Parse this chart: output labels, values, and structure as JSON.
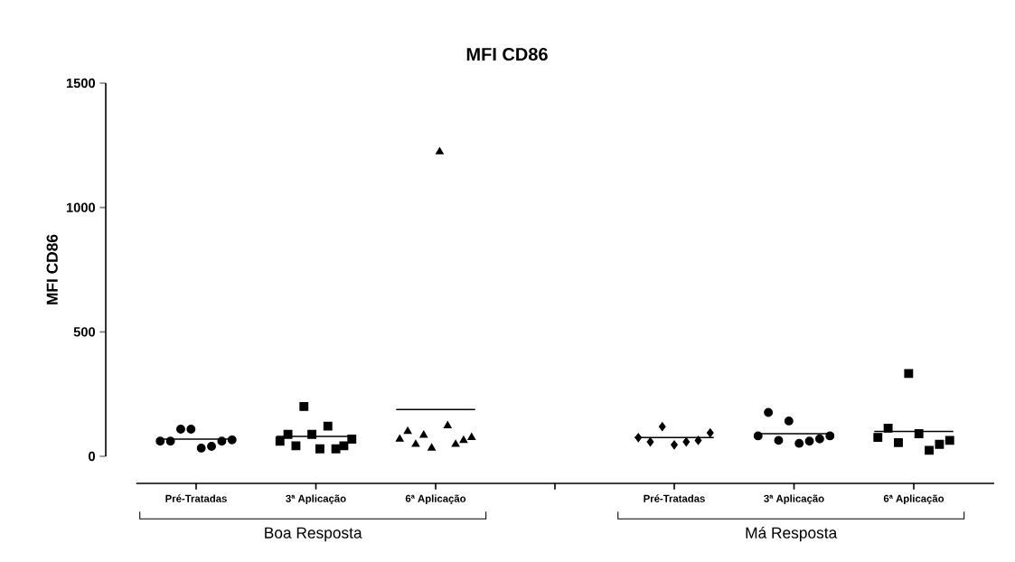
{
  "chart_data": [
    {
      "type": "scatter",
      "title": "MFI CD86",
      "ylabel": "MFI CD86",
      "xlabel": "Boa Resposta",
      "categories": [
        "Pré-Tratadas",
        "3ª Aplicação",
        "6ª Aplicação"
      ],
      "ylim": [
        0,
        1500
      ],
      "yticks": [
        0,
        500,
        1000,
        1500
      ],
      "series": [
        {
          "color": "#000000",
          "marker": "circle",
          "x": [
            "Pré-Tratadas",
            "Pré-Tratadas",
            "Pré-Tratadas",
            "Pré-Tratadas",
            "Pré-Tratadas",
            "Pré-Tratadas",
            "Pré-Tratadas",
            "Pré-Tratadas"
          ],
          "values": [
            61,
            61,
            109,
            109,
            33,
            40,
            61,
            66
          ]
        },
        {
          "color": "#000000",
          "marker": "square",
          "x": [
            "3ª Aplicação",
            "3ª Aplicação",
            "3ª Aplicação",
            "3ª Aplicação",
            "3ª Aplicação",
            "3ª Aplicação",
            "3ª Aplicação",
            "3ª Aplicação",
            "3ª Aplicação",
            "3ª Aplicação"
          ],
          "values": [
            61,
            88,
            42,
            200,
            88,
            30,
            121,
            30,
            42,
            69
          ]
        },
        {
          "color": "#000000",
          "marker": "triangle",
          "x": [
            "6ª Aplicação",
            "6ª Aplicação",
            "6ª Aplicação",
            "6ª Aplicação",
            "6ª Aplicação",
            "6ª Aplicação",
            "6ª Aplicação",
            "6ª Aplicação",
            "6ª Aplicação",
            "6ª Aplicação"
          ],
          "values": [
            69,
            100,
            48,
            85,
            33,
            1224,
            123,
            48,
            64,
            76
          ]
        }
      ],
      "ref_lines": [
        {
          "axis": "y",
          "value": 69,
          "color": "#000000"
        },
        {
          "axis": "y",
          "value": 80,
          "color": "#000000"
        },
        {
          "axis": "y",
          "value": 188,
          "color": "#000000"
        }
      ]
    },
    {
      "type": "scatter",
      "xlabel": "Má Resposta",
      "tick_labels": "x",
      "categories": [
        "Pré-Tratadas",
        "3ª Aplicação",
        "6ª Aplicação"
      ],
      "ylim": [
        0,
        1500
      ],
      "series": [
        {
          "color": "#000000",
          "marker": "diamond",
          "x": [
            "Pré-Tratadas",
            "Pré-Tratadas",
            "Pré-Tratadas",
            "Pré-Tratadas",
            "Pré-Tratadas",
            "Pré-Tratadas",
            "Pré-Tratadas"
          ],
          "values": [
            75,
            58,
            119,
            46,
            58,
            64,
            94
          ]
        },
        {
          "color": "#000000",
          "marker": "circle",
          "x": [
            "3ª Aplicação",
            "3ª Aplicação",
            "3ª Aplicação",
            "3ª Aplicação",
            "3ª Aplicação",
            "3ª Aplicação",
            "3ª Aplicação",
            "3ª Aplicação"
          ],
          "values": [
            82,
            176,
            64,
            142,
            52,
            61,
            70,
            82
          ]
        },
        {
          "color": "#000000",
          "marker": "square",
          "x": [
            "6ª Aplicação",
            "6ª Aplicação",
            "6ª Aplicação",
            "6ª Aplicação",
            "6ª Aplicação",
            "6ª Aplicação",
            "6ª Aplicação",
            "6ª Aplicação"
          ],
          "values": [
            76,
            113,
            55,
            333,
            91,
            24,
            48,
            64
          ]
        }
      ],
      "ref_lines": [
        {
          "axis": "y",
          "value": 75,
          "color": "#000000"
        },
        {
          "axis": "y",
          "value": 91,
          "color": "#000000"
        },
        {
          "axis": "y",
          "value": 100,
          "color": "#000000"
        }
      ]
    }
  ]
}
